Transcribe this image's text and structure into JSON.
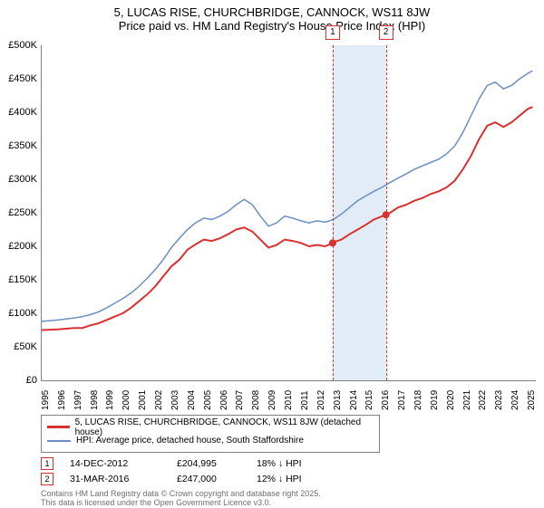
{
  "title": {
    "line1": "5, LUCAS RISE, CHURCHBRIDGE, CANNOCK, WS11 8JW",
    "line2": "Price paid vs. HM Land Registry's House Price Index (HPI)"
  },
  "chart": {
    "type": "line",
    "background_color": "#ffffff",
    "highlight_color": "#dce9f5",
    "grid_color": "#808080",
    "xlim": [
      1995,
      2025.5
    ],
    "ylim": [
      0,
      500000
    ],
    "ytick_step": 50000,
    "ytick_labels": [
      "£0",
      "£50K",
      "£100K",
      "£150K",
      "£200K",
      "£250K",
      "£300K",
      "£350K",
      "£400K",
      "£450K",
      "£500K"
    ],
    "xtick_step": 1,
    "xtick_labels": [
      "1995",
      "1996",
      "1997",
      "1998",
      "1999",
      "2000",
      "2001",
      "2002",
      "2003",
      "2004",
      "2005",
      "2006",
      "2007",
      "2008",
      "2009",
      "2010",
      "2011",
      "2012",
      "2013",
      "2014",
      "2015",
      "2016",
      "2017",
      "2018",
      "2019",
      "2020",
      "2021",
      "2022",
      "2023",
      "2024",
      "2025"
    ],
    "label_fontsize": 11,
    "series": {
      "property": {
        "label": "5, LUCAS RISE, CHURCHBRIDGE, CANNOCK, WS11 8JW (detached house)",
        "color": "#d93030",
        "width": 2,
        "data": [
          [
            1995,
            75000
          ],
          [
            1996,
            76000
          ],
          [
            1997,
            78000
          ],
          [
            1997.5,
            78000
          ],
          [
            1998,
            82000
          ],
          [
            1998.5,
            85000
          ],
          [
            1999,
            90000
          ],
          [
            1999.5,
            95000
          ],
          [
            2000,
            100000
          ],
          [
            2000.5,
            108000
          ],
          [
            2001,
            118000
          ],
          [
            2001.5,
            128000
          ],
          [
            2002,
            140000
          ],
          [
            2002.5,
            155000
          ],
          [
            2003,
            170000
          ],
          [
            2003.5,
            180000
          ],
          [
            2004,
            195000
          ],
          [
            2004.5,
            203000
          ],
          [
            2005,
            210000
          ],
          [
            2005.5,
            208000
          ],
          [
            2006,
            212000
          ],
          [
            2006.5,
            218000
          ],
          [
            2007,
            225000
          ],
          [
            2007.5,
            228000
          ],
          [
            2008,
            222000
          ],
          [
            2008.5,
            210000
          ],
          [
            2009,
            198000
          ],
          [
            2009.5,
            202000
          ],
          [
            2010,
            210000
          ],
          [
            2010.5,
            208000
          ],
          [
            2011,
            205000
          ],
          [
            2011.5,
            200000
          ],
          [
            2012,
            202000
          ],
          [
            2012.5,
            200000
          ],
          [
            2012.96,
            204995
          ],
          [
            2013,
            206000
          ],
          [
            2013.5,
            210000
          ],
          [
            2014,
            218000
          ],
          [
            2014.5,
            225000
          ],
          [
            2015,
            232000
          ],
          [
            2015.5,
            240000
          ],
          [
            2016.25,
            247000
          ],
          [
            2016.5,
            250000
          ],
          [
            2017,
            258000
          ],
          [
            2017.5,
            262000
          ],
          [
            2018,
            268000
          ],
          [
            2018.5,
            272000
          ],
          [
            2019,
            278000
          ],
          [
            2019.5,
            282000
          ],
          [
            2020,
            288000
          ],
          [
            2020.5,
            298000
          ],
          [
            2021,
            315000
          ],
          [
            2021.5,
            335000
          ],
          [
            2022,
            360000
          ],
          [
            2022.5,
            380000
          ],
          [
            2023,
            385000
          ],
          [
            2023.5,
            378000
          ],
          [
            2024,
            385000
          ],
          [
            2024.5,
            395000
          ],
          [
            2025,
            405000
          ],
          [
            2025.3,
            408000
          ]
        ]
      },
      "hpi": {
        "label": "HPI: Average price, detached house, South Staffordshire",
        "color": "#6a8fc4",
        "width": 1.5,
        "data": [
          [
            1995,
            88000
          ],
          [
            1996,
            90000
          ],
          [
            1997,
            93000
          ],
          [
            1997.5,
            95000
          ],
          [
            1998,
            98000
          ],
          [
            1998.5,
            102000
          ],
          [
            1999,
            108000
          ],
          [
            1999.5,
            115000
          ],
          [
            2000,
            122000
          ],
          [
            2000.5,
            130000
          ],
          [
            2001,
            140000
          ],
          [
            2001.5,
            152000
          ],
          [
            2002,
            165000
          ],
          [
            2002.5,
            180000
          ],
          [
            2003,
            198000
          ],
          [
            2003.5,
            212000
          ],
          [
            2004,
            225000
          ],
          [
            2004.5,
            235000
          ],
          [
            2005,
            242000
          ],
          [
            2005.5,
            240000
          ],
          [
            2006,
            245000
          ],
          [
            2006.5,
            252000
          ],
          [
            2007,
            262000
          ],
          [
            2007.5,
            270000
          ],
          [
            2008,
            262000
          ],
          [
            2008.5,
            245000
          ],
          [
            2009,
            230000
          ],
          [
            2009.5,
            235000
          ],
          [
            2010,
            245000
          ],
          [
            2010.5,
            242000
          ],
          [
            2011,
            238000
          ],
          [
            2011.5,
            235000
          ],
          [
            2012,
            238000
          ],
          [
            2012.5,
            236000
          ],
          [
            2013,
            240000
          ],
          [
            2013.5,
            248000
          ],
          [
            2014,
            258000
          ],
          [
            2014.5,
            268000
          ],
          [
            2015,
            275000
          ],
          [
            2015.5,
            282000
          ],
          [
            2016,
            288000
          ],
          [
            2016.5,
            295000
          ],
          [
            2017,
            302000
          ],
          [
            2017.5,
            308000
          ],
          [
            2018,
            315000
          ],
          [
            2018.5,
            320000
          ],
          [
            2019,
            325000
          ],
          [
            2019.5,
            330000
          ],
          [
            2020,
            338000
          ],
          [
            2020.5,
            350000
          ],
          [
            2021,
            370000
          ],
          [
            2021.5,
            395000
          ],
          [
            2022,
            420000
          ],
          [
            2022.5,
            440000
          ],
          [
            2023,
            445000
          ],
          [
            2023.5,
            435000
          ],
          [
            2024,
            440000
          ],
          [
            2024.5,
            450000
          ],
          [
            2025,
            458000
          ],
          [
            2025.3,
            462000
          ]
        ]
      }
    },
    "markers": [
      {
        "n": "1",
        "x": 2012.96,
        "y": 204995
      },
      {
        "n": "2",
        "x": 2016.25,
        "y": 247000
      }
    ]
  },
  "legend": {
    "item1": "5, LUCAS RISE, CHURCHBRIDGE, CANNOCK, WS11 8JW (detached house)",
    "item2": "HPI: Average price, detached house, South Staffordshire"
  },
  "sales": [
    {
      "n": "1",
      "date": "14-DEC-2012",
      "price": "£204,995",
      "delta": "18% ↓ HPI"
    },
    {
      "n": "2",
      "date": "31-MAR-2016",
      "price": "£247,000",
      "delta": "12% ↓ HPI"
    }
  ],
  "credits": {
    "line1": "Contains HM Land Registry data © Crown copyright and database right 2025.",
    "line2": "This data is licensed under the Open Government Licence v3.0."
  }
}
